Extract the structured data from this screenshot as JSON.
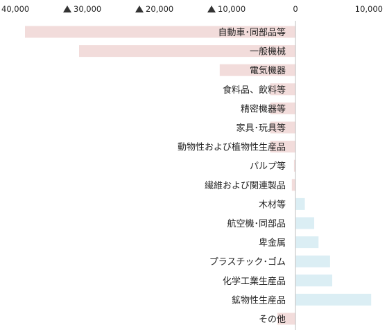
{
  "chart_data": {
    "type": "bar",
    "orientation": "horizontal",
    "categories": [
      "自動車･同部品等",
      "一般機械",
      "電気機器",
      "食料品、飲料等",
      "精密機器等",
      "家具･玩具等",
      "動物性および植物性生産品",
      "パルプ等",
      "繊維および関連製品",
      "木材等",
      "航空機･同部品",
      "卑金属",
      "プラスチック･ゴム",
      "化学工業生産品",
      "鉱物性生産品",
      "その他"
    ],
    "values": [
      -37500,
      -30000,
      -10500,
      -3500,
      -3500,
      -3500,
      -3500,
      -200,
      -500,
      1300,
      2600,
      3200,
      4800,
      5100,
      10500,
      -2500
    ],
    "xlim": [
      -40000,
      10000
    ],
    "x_ticks": [
      {
        "value": -40000,
        "label": "40,000",
        "negative_marker": true
      },
      {
        "value": -30000,
        "label": "30,000",
        "negative_marker": true
      },
      {
        "value": -20000,
        "label": "20,000",
        "negative_marker": true
      },
      {
        "value": -10000,
        "label": "10,000",
        "negative_marker": true
      },
      {
        "value": 0,
        "label": "0",
        "negative_marker": false
      },
      {
        "value": 10000,
        "label": "10,000",
        "negative_marker": false
      }
    ],
    "negative_color": "#f2dcdb",
    "positive_color": "#dbeef4",
    "grid": false,
    "legend": "none"
  }
}
